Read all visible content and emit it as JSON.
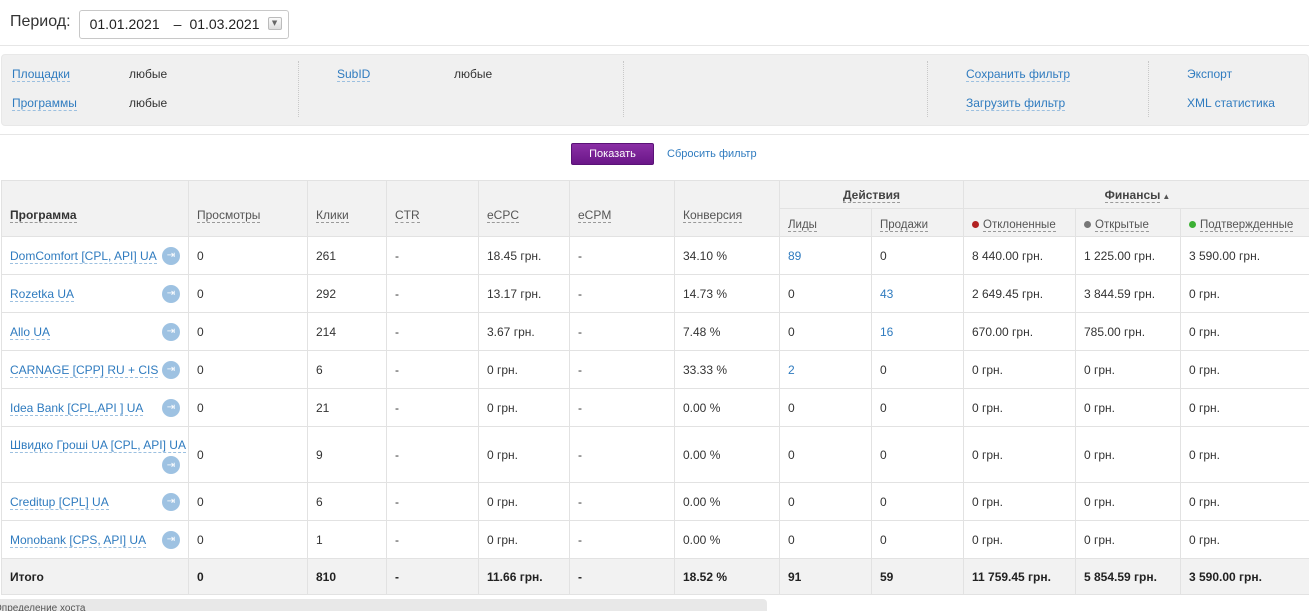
{
  "period": {
    "label": "Период:",
    "from": "01.01.2021",
    "sep": "–",
    "to": "01.03.2021",
    "dropdown_icon": "triangle-down"
  },
  "filters": {
    "sites_label": "Площадки",
    "sites_value": "любые",
    "programs_label": "Программы",
    "programs_value": "любые",
    "subid_label": "SubID",
    "subid_value": "любые",
    "save_filter": "Сохранить фильтр",
    "load_filter": "Загрузить фильтр",
    "export": "Экспорт",
    "xml_stats": "XML статистика"
  },
  "actions": {
    "show": "Показать",
    "reset": "Сбросить фильтр"
  },
  "table": {
    "headers": {
      "program": "Программа",
      "views": "Просмотры",
      "clicks": "Клики",
      "ctr": "CTR",
      "ecpc": "eCPC",
      "ecpm": "eCPM",
      "conversion": "Конверсия",
      "actions_group": "Действия",
      "leads": "Лиды",
      "sales": "Продажи",
      "finance_group": "Финансы",
      "finance_sort": "▲",
      "rejected": "Отклоненные",
      "open": "Открытые",
      "confirmed": "Подтвержденные"
    },
    "status_colors": {
      "rejected": "#b22222",
      "open": "#777777",
      "confirmed": "#3cb034"
    },
    "rows": [
      {
        "program": "DomComfort [CPL, API] UA",
        "views": "0",
        "clicks": "261",
        "ctr": "-",
        "ecpc": "18.45 грн.",
        "ecpm": "-",
        "conversion": "34.10 %",
        "leads": "89",
        "sales": "0",
        "rejected": "8 440.00 грн.",
        "open": "1 225.00 грн.",
        "confirmed": "3 590.00 грн."
      },
      {
        "program": "Rozetka UA",
        "views": "0",
        "clicks": "292",
        "ctr": "-",
        "ecpc": "13.17 грн.",
        "ecpm": "-",
        "conversion": "14.73 %",
        "leads": "0",
        "sales": "43",
        "rejected": "2 649.45 грн.",
        "open": "3 844.59 грн.",
        "confirmed": "0 грн."
      },
      {
        "program": "Allo UA",
        "views": "0",
        "clicks": "214",
        "ctr": "-",
        "ecpc": "3.67 грн.",
        "ecpm": "-",
        "conversion": "7.48 %",
        "leads": "0",
        "sales": "16",
        "rejected": "670.00 грн.",
        "open": "785.00 грн.",
        "confirmed": "0 грн."
      },
      {
        "program": "CARNAGE [CPP] RU + CIS",
        "views": "0",
        "clicks": "6",
        "ctr": "-",
        "ecpc": "0 грн.",
        "ecpm": "-",
        "conversion": "33.33 %",
        "leads": "2",
        "sales": "0",
        "rejected": "0 грн.",
        "open": "0 грн.",
        "confirmed": "0 грн."
      },
      {
        "program": "Idea Bank [CPL,API ] UA",
        "views": "0",
        "clicks": "21",
        "ctr": "-",
        "ecpc": "0 грн.",
        "ecpm": "-",
        "conversion": "0.00 %",
        "leads": "0",
        "sales": "0",
        "rejected": "0 грн.",
        "open": "0 грн.",
        "confirmed": "0 грн."
      },
      {
        "program": "Швидко Гроші UA [CPL, API] UA",
        "views": "0",
        "clicks": "9",
        "ctr": "-",
        "ecpc": "0 грн.",
        "ecpm": "-",
        "conversion": "0.00 %",
        "leads": "0",
        "sales": "0",
        "rejected": "0 грн.",
        "open": "0 грн.",
        "confirmed": "0 грн."
      },
      {
        "program": "Creditup [CPL] UA",
        "views": "0",
        "clicks": "6",
        "ctr": "-",
        "ecpc": "0 грн.",
        "ecpm": "-",
        "conversion": "0.00 %",
        "leads": "0",
        "sales": "0",
        "rejected": "0 грн.",
        "open": "0 грн.",
        "confirmed": "0 грн."
      },
      {
        "program": "Monobank [CPS, API] UA",
        "views": "0",
        "clicks": "1",
        "ctr": "-",
        "ecpc": "0 грн.",
        "ecpm": "-",
        "conversion": "0.00 %",
        "leads": "0",
        "sales": "0",
        "rejected": "0 грн.",
        "open": "0 грн.",
        "confirmed": "0 грн."
      }
    ],
    "total": {
      "label": "Итого",
      "views": "0",
      "clicks": "810",
      "ctr": "-",
      "ecpc": "11.66 грн.",
      "ecpm": "-",
      "conversion": "18.52 %",
      "leads": "91",
      "sales": "59",
      "rejected": "11 759.45 грн.",
      "open": "5 854.59 грн.",
      "confirmed": "3 590.00 грн."
    }
  },
  "bottom_tab": "Определение хоста",
  "row_icon": "enter-icon"
}
